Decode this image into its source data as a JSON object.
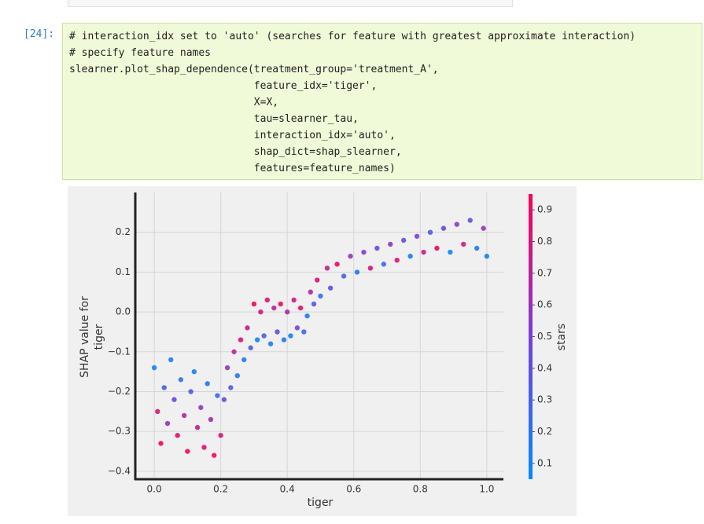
{
  "cell": {
    "prompt": "[24]:",
    "code": [
      "# interaction_idx set to 'auto' (searches for feature with greatest approximate interaction)",
      "# specify feature names",
      "slearner.plot_shap_dependence(treatment_group='treatment_A',",
      "                              feature_idx='tiger',",
      "                              X=X,",
      "                              tau=slearner_tau,",
      "                              interaction_idx='auto',",
      "                              shap_dict=shap_slearner,",
      "                              features=feature_names)"
    ]
  },
  "chart_data": {
    "type": "scatter",
    "xlabel": "tiger",
    "ylabel": [
      "SHAP value for",
      "tiger"
    ],
    "colorbar_label": "stars",
    "x": [
      0.0,
      0.01,
      0.02,
      0.03,
      0.04,
      0.05,
      0.06,
      0.07,
      0.08,
      0.09,
      0.1,
      0.11,
      0.12,
      0.13,
      0.14,
      0.15,
      0.16,
      0.17,
      0.18,
      0.19,
      0.2,
      0.21,
      0.22,
      0.23,
      0.24,
      0.25,
      0.26,
      0.27,
      0.28,
      0.29,
      0.3,
      0.31,
      0.32,
      0.33,
      0.34,
      0.35,
      0.36,
      0.37,
      0.38,
      0.39,
      0.4,
      0.41,
      0.42,
      0.43,
      0.44,
      0.45,
      0.46,
      0.47,
      0.48,
      0.49,
      0.5,
      0.52,
      0.53,
      0.55,
      0.57,
      0.59,
      0.61,
      0.63,
      0.65,
      0.67,
      0.69,
      0.71,
      0.73,
      0.75,
      0.77,
      0.79,
      0.81,
      0.83,
      0.85,
      0.87,
      0.89,
      0.91,
      0.93,
      0.95,
      0.97,
      0.99,
      1.0
    ],
    "values": [
      -0.14,
      -0.25,
      -0.33,
      -0.19,
      -0.28,
      -0.12,
      -0.22,
      -0.31,
      -0.17,
      -0.26,
      -0.35,
      -0.2,
      -0.15,
      -0.29,
      -0.24,
      -0.34,
      -0.18,
      -0.27,
      -0.36,
      -0.21,
      -0.31,
      -0.22,
      -0.14,
      -0.19,
      -0.1,
      -0.16,
      -0.07,
      -0.12,
      -0.04,
      -0.09,
      0.02,
      -0.07,
      0.0,
      -0.06,
      0.03,
      -0.08,
      0.01,
      -0.05,
      0.02,
      -0.07,
      0.0,
      -0.06,
      0.03,
      -0.04,
      0.01,
      -0.05,
      -0.01,
      0.05,
      0.02,
      0.08,
      0.04,
      0.11,
      0.06,
      0.12,
      0.09,
      0.14,
      0.1,
      0.15,
      0.11,
      0.16,
      0.12,
      0.17,
      0.13,
      0.18,
      0.14,
      0.19,
      0.15,
      0.2,
      0.16,
      0.21,
      0.15,
      0.22,
      0.17,
      0.23,
      0.16,
      0.21,
      0.14
    ],
    "color_values": [
      0.1,
      0.8,
      0.9,
      0.3,
      0.6,
      0.12,
      0.45,
      0.85,
      0.2,
      0.7,
      0.92,
      0.35,
      0.1,
      0.75,
      0.55,
      0.88,
      0.15,
      0.65,
      0.9,
      0.25,
      0.8,
      0.4,
      0.6,
      0.3,
      0.7,
      0.2,
      0.85,
      0.15,
      0.75,
      0.35,
      0.9,
      0.1,
      0.8,
      0.3,
      0.85,
      0.15,
      0.7,
      0.4,
      0.92,
      0.2,
      0.65,
      0.12,
      0.8,
      0.45,
      0.88,
      0.25,
      0.15,
      0.7,
      0.35,
      0.85,
      0.2,
      0.75,
      0.4,
      0.9,
      0.3,
      0.6,
      0.15,
      0.5,
      0.8,
      0.45,
      0.25,
      0.55,
      0.85,
      0.4,
      0.12,
      0.5,
      0.75,
      0.35,
      0.9,
      0.45,
      0.1,
      0.55,
      0.8,
      0.4,
      0.15,
      0.6,
      0.1
    ],
    "xlim": [
      -0.057,
      1.05
    ],
    "ylim": [
      -0.42,
      0.3
    ],
    "clim": [
      0.05,
      0.95
    ],
    "xticks": [
      {
        "value": 0,
        "label": "0.0"
      },
      0.2,
      0.4,
      0.6,
      0.8,
      {
        "value": 1,
        "label": "1.0"
      }
    ],
    "yticks": [
      {
        "value": -0.4,
        "label": "−0.4"
      },
      {
        "value": -0.3,
        "label": "−0.3"
      },
      {
        "value": -0.2,
        "label": "−0.2"
      },
      {
        "value": -0.1,
        "label": "−0.1"
      },
      {
        "value": 0,
        "label": "0.0"
      },
      0.1,
      0.2
    ],
    "cticks": [
      0.1,
      0.2,
      0.3,
      0.4,
      0.5,
      0.6,
      0.7,
      0.8,
      0.9
    ],
    "grid": true,
    "colormap": [
      "#008bfb",
      "#7a3fd6",
      "#ff0052"
    ]
  }
}
